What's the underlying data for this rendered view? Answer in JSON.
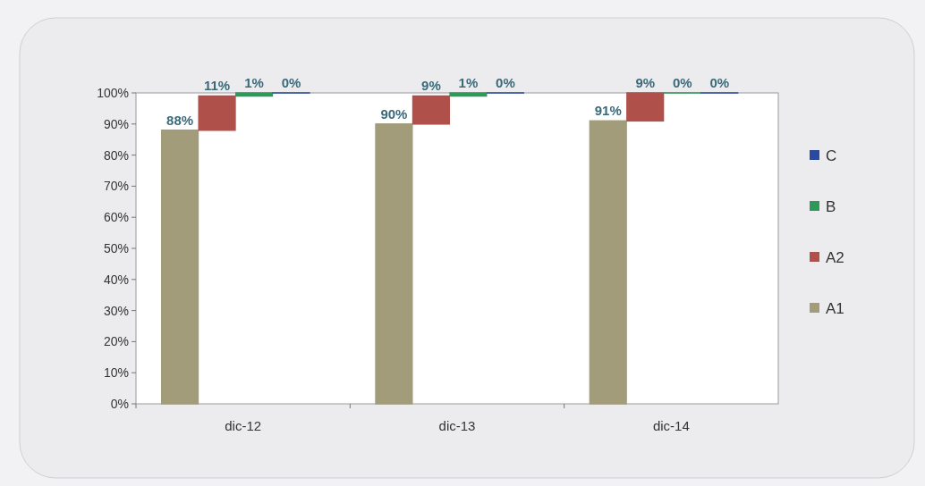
{
  "chart_data": {
    "type": "bar",
    "stacked": true,
    "categories": [
      "dic-12",
      "dic-13",
      "dic-14"
    ],
    "ylim": [
      0,
      100
    ],
    "yticks": [
      {
        "value": 0,
        "label": "0%"
      },
      {
        "value": 10,
        "label": "10%"
      },
      {
        "value": 20,
        "label": "20%"
      },
      {
        "value": 30,
        "label": "30%"
      },
      {
        "value": 40,
        "label": "40%"
      },
      {
        "value": 50,
        "label": "50%"
      },
      {
        "value": 60,
        "label": "60%"
      },
      {
        "value": 70,
        "label": "70%"
      },
      {
        "value": 80,
        "label": "80%"
      },
      {
        "value": 90,
        "label": "90%"
      },
      {
        "value": 100,
        "label": "100%"
      }
    ],
    "legend": "right",
    "grid": false,
    "series": [
      {
        "name": "A1",
        "color": "#a29c7a",
        "values": [
          88,
          90,
          91
        ],
        "value_labels": [
          "88%",
          "90%",
          "91%"
        ]
      },
      {
        "name": "A2",
        "color": "#b0504a",
        "values": [
          11,
          9,
          9
        ],
        "value_labels": [
          "11%",
          "9%",
          "9%"
        ]
      },
      {
        "name": "B",
        "color": "#2e9a5a",
        "values": [
          1,
          1,
          0
        ],
        "value_labels": [
          "1%",
          "1%",
          "0%"
        ]
      },
      {
        "name": "C",
        "color": "#2a4aa0",
        "values": [
          0,
          0,
          0
        ],
        "value_labels": [
          "0%",
          "0%",
          "0%"
        ]
      }
    ]
  }
}
